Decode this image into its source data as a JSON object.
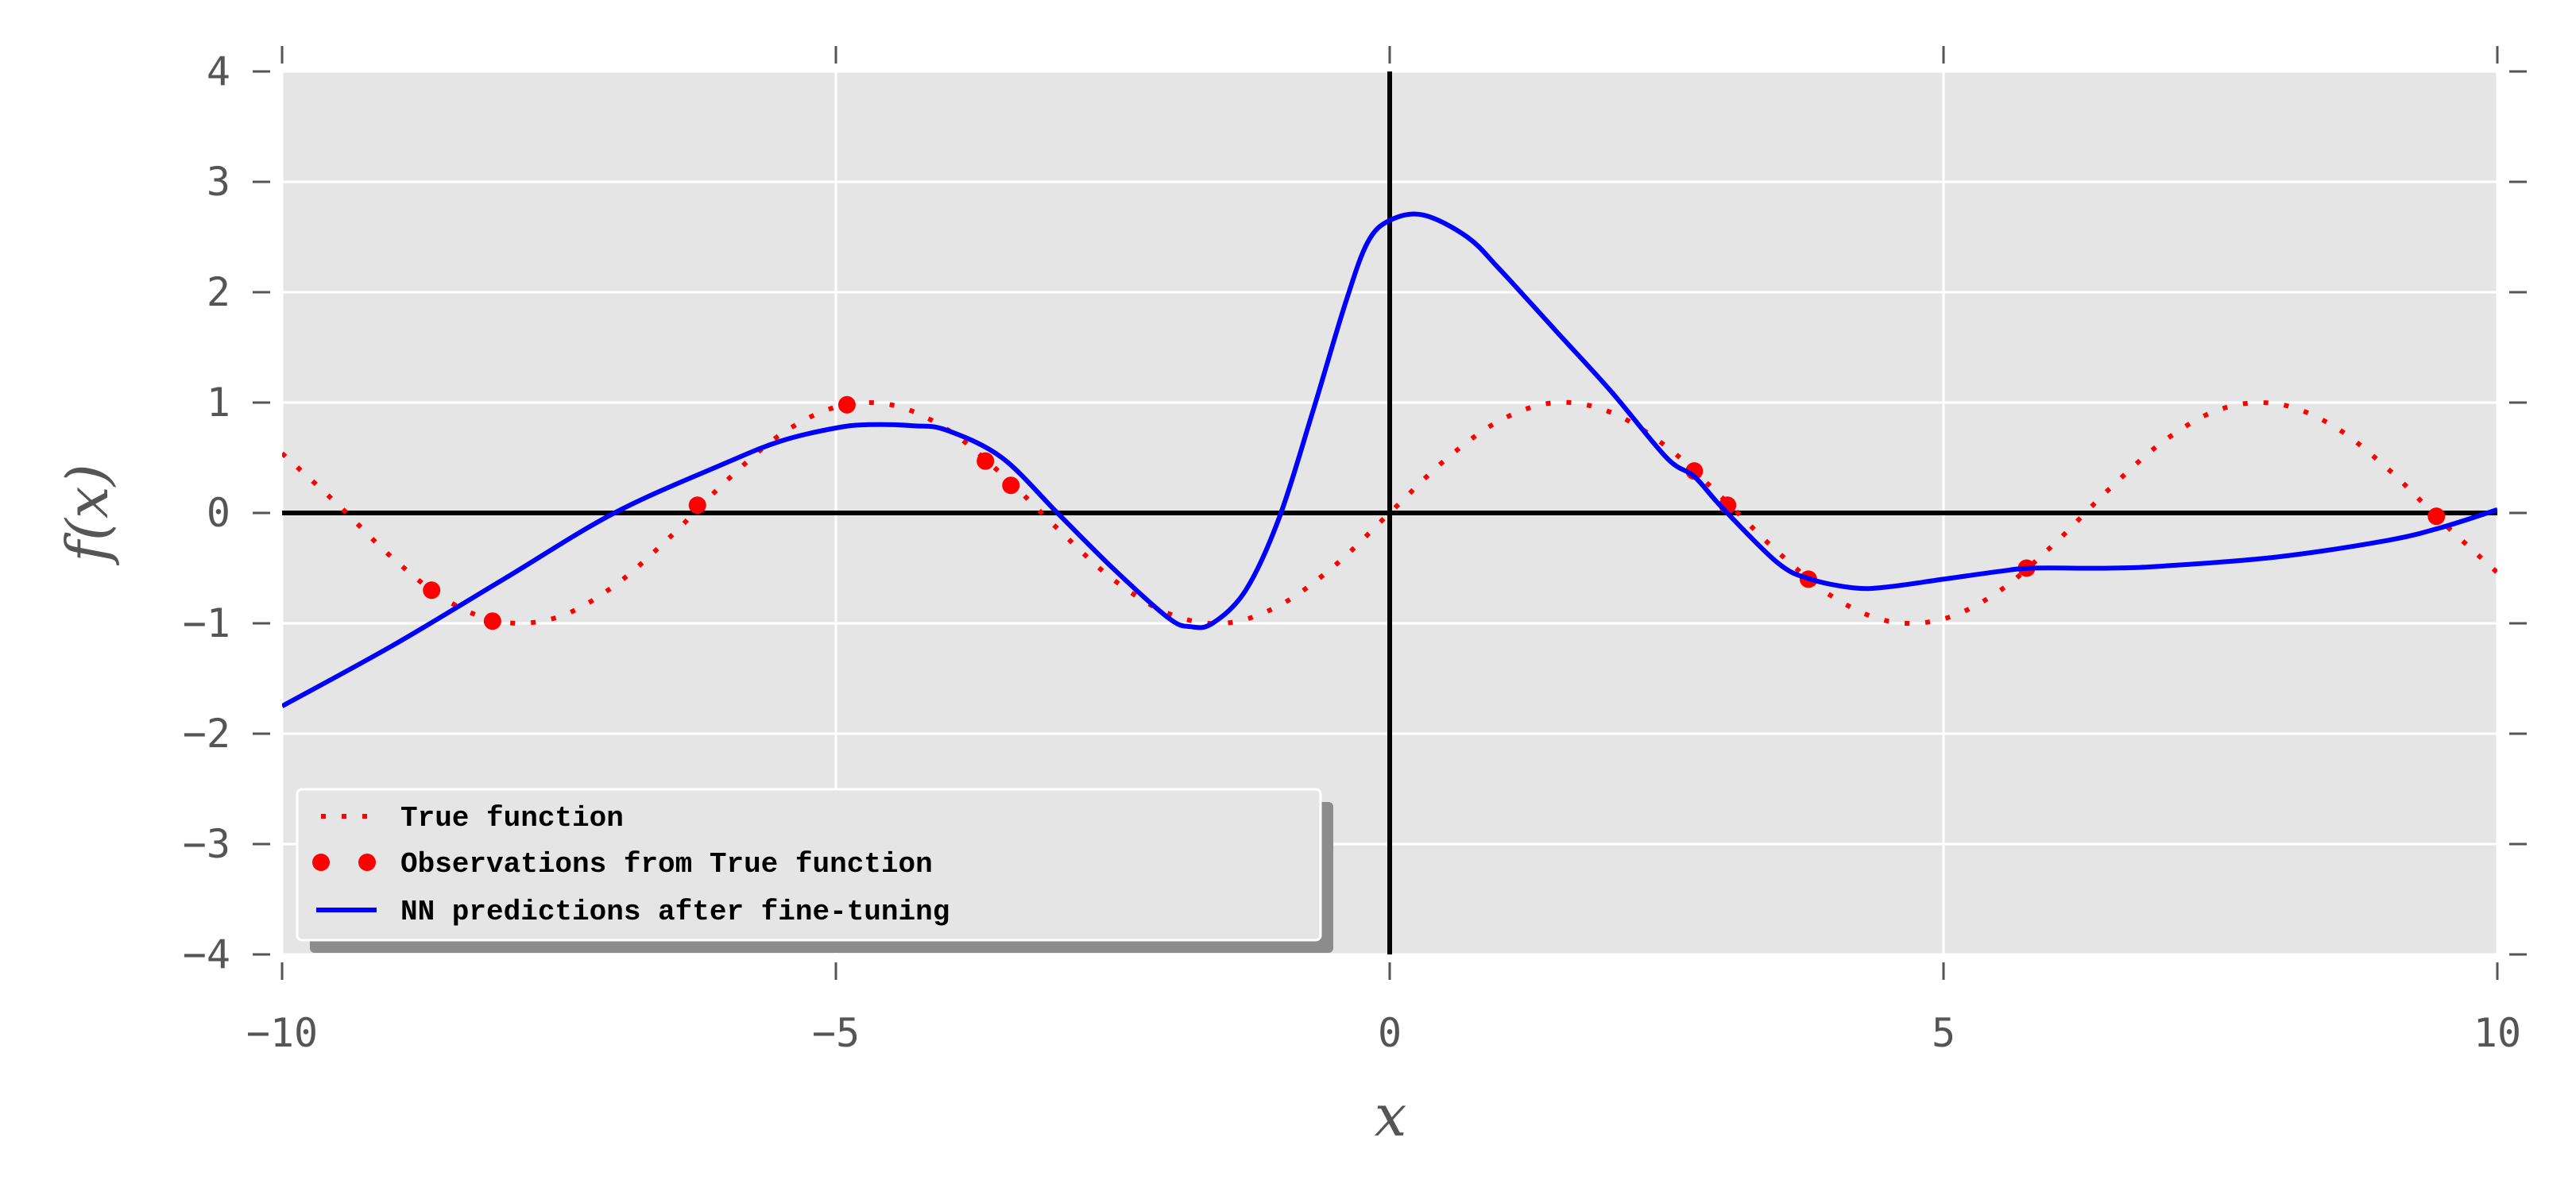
{
  "chart_data": {
    "type": "line",
    "xlabel": "x",
    "ylabel": "f(x)",
    "xlim": [
      -10,
      10
    ],
    "ylim": [
      -4,
      4
    ],
    "x_ticks": [
      -10,
      -5,
      0,
      5,
      10
    ],
    "x_tick_labels": [
      "−10",
      "−5",
      "0",
      "5",
      "10"
    ],
    "y_ticks": [
      -4,
      -3,
      -2,
      -1,
      0,
      1,
      2,
      3,
      4
    ],
    "y_tick_labels": [
      "−4",
      "−3",
      "−2",
      "−1",
      "0",
      "1",
      "2",
      "3",
      "4"
    ],
    "grid": true,
    "legend_position": "lower-left",
    "series": [
      {
        "name": "True function",
        "style": "dotted",
        "color": "#ff0000",
        "x": [
          -10,
          -9.5,
          -9,
          -8.5,
          -8,
          -7.5,
          -7,
          -6.5,
          -6,
          -5.5,
          -5,
          -4.5,
          -4,
          -3.5,
          -3,
          -2.5,
          -2,
          -1.5,
          -1,
          -0.5,
          0,
          0.5,
          1,
          1.5,
          2,
          2.5,
          3,
          3.5,
          4,
          4.5,
          5,
          5.5,
          6,
          6.5,
          7,
          7.5,
          8,
          8.5,
          9,
          9.5,
          10
        ],
        "y": [
          0.54,
          0.08,
          -0.41,
          -0.8,
          -0.99,
          -0.94,
          -0.66,
          -0.22,
          0.28,
          0.71,
          0.96,
          0.98,
          0.76,
          0.35,
          -0.14,
          -0.6,
          -0.91,
          -1.0,
          -0.84,
          -0.48,
          0.0,
          0.48,
          0.84,
          1.0,
          0.91,
          0.6,
          0.14,
          -0.35,
          -0.76,
          -0.98,
          -0.96,
          -0.71,
          -0.28,
          0.22,
          0.66,
          0.94,
          0.99,
          0.8,
          0.41,
          -0.08,
          -0.54
        ]
      },
      {
        "name": "Observations from True function",
        "style": "markers",
        "color": "#ff0000",
        "x": [
          -8.65,
          -8.1,
          -6.25,
          -4.9,
          -3.65,
          -3.42,
          2.75,
          3.05,
          3.78,
          5.75,
          9.45
        ],
        "y": [
          -0.7,
          -0.98,
          0.07,
          0.98,
          0.47,
          0.25,
          0.38,
          0.07,
          -0.6,
          -0.5,
          -0.03
        ]
      },
      {
        "name": "NN predictions after fine-tuning",
        "style": "solid",
        "color": "#0000ff",
        "x": [
          -10,
          -9,
          -8,
          -7,
          -6,
          -5.5,
          -5,
          -4.7,
          -4.3,
          -4,
          -3.5,
          -3,
          -2.5,
          -2,
          -1.8,
          -1.6,
          -1.3,
          -1,
          -0.7,
          -0.4,
          -0.2,
          0,
          0.3,
          0.7,
          1,
          1.5,
          2,
          2.5,
          2.75,
          3,
          3.5,
          3.8,
          4.2,
          4.5,
          5,
          5.5,
          5.8,
          6.5,
          7,
          8,
          9,
          9.5,
          10
        ],
        "y": [
          -1.75,
          -1.2,
          -0.6,
          0.0,
          0.45,
          0.65,
          0.77,
          0.8,
          0.79,
          0.75,
          0.5,
          0.0,
          -0.5,
          -0.95,
          -1.03,
          -1.0,
          -0.7,
          -0.05,
          0.9,
          1.9,
          2.45,
          2.65,
          2.7,
          2.5,
          2.2,
          1.65,
          1.1,
          0.5,
          0.33,
          0.05,
          -0.45,
          -0.6,
          -0.68,
          -0.67,
          -0.6,
          -0.53,
          -0.5,
          -0.5,
          -0.48,
          -0.4,
          -0.25,
          -0.13,
          0.03
        ]
      }
    ]
  }
}
